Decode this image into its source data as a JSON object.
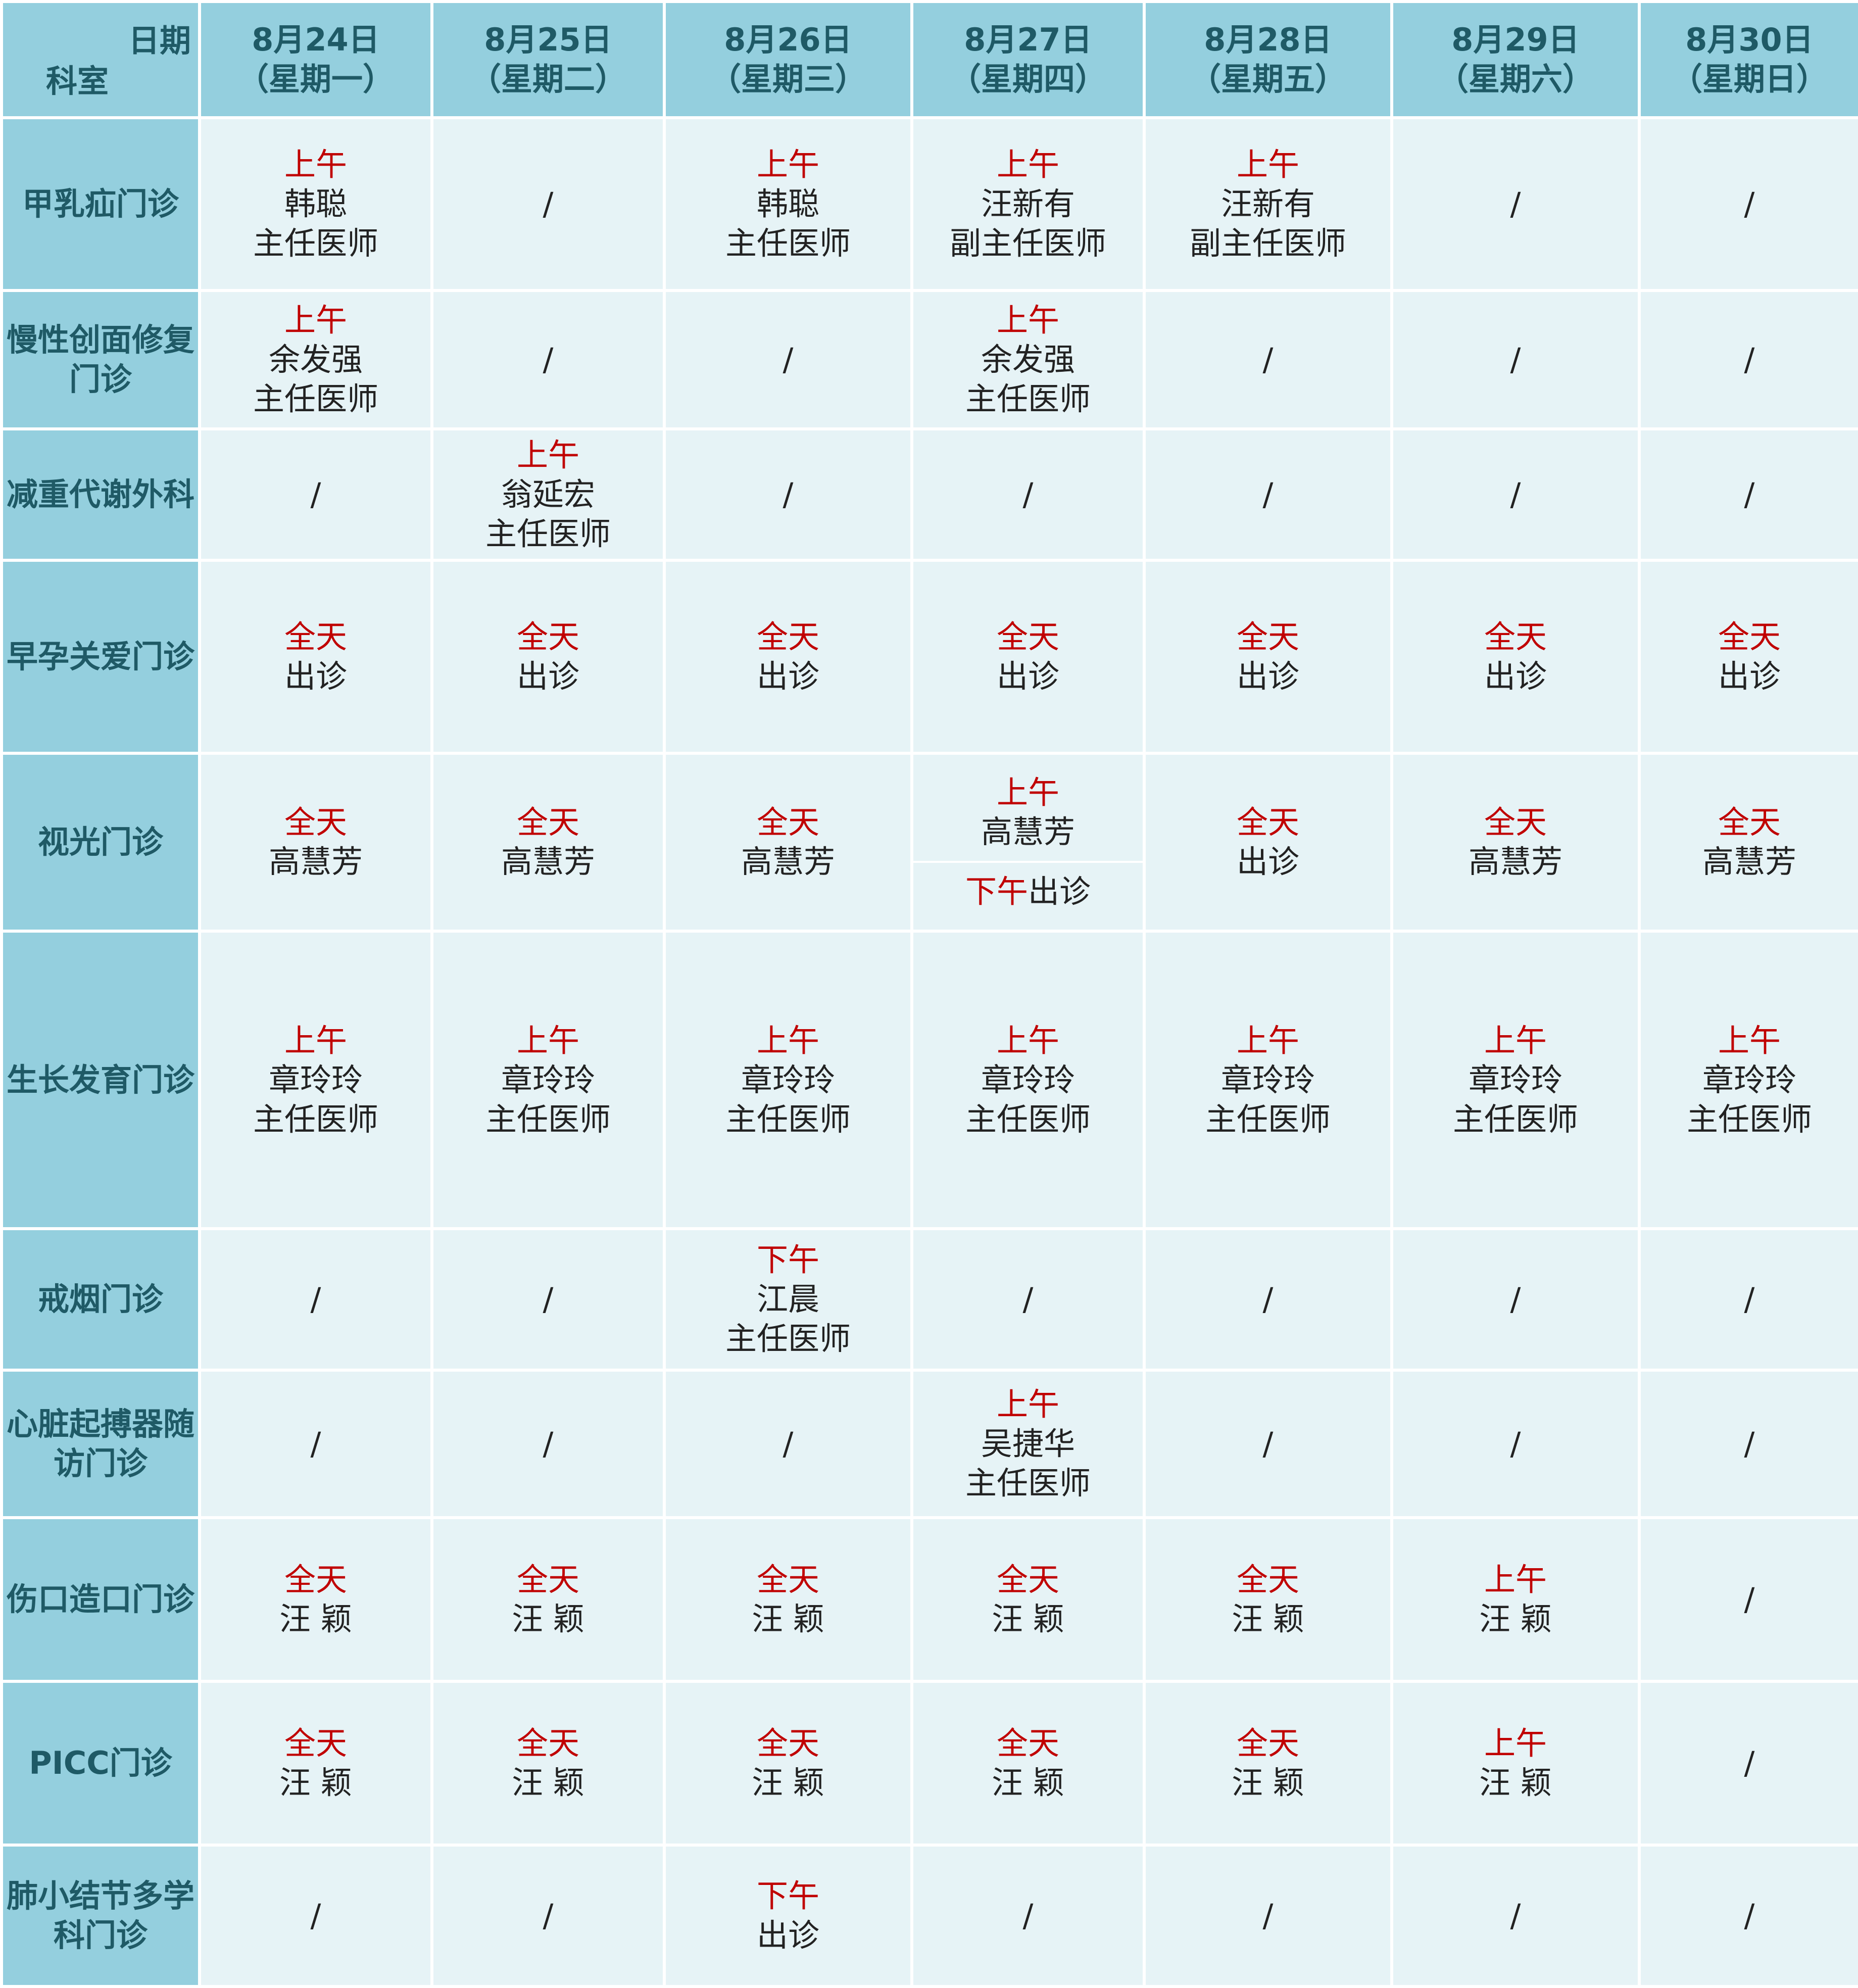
{
  "header": {
    "corner_top": "日期",
    "corner_bottom": "科室",
    "days": [
      {
        "date": "8月24日",
        "weekday": "（星期一）"
      },
      {
        "date": "8月25日",
        "weekday": "（星期二）"
      },
      {
        "date": "8月26日",
        "weekday": "（星期三）"
      },
      {
        "date": "8月27日",
        "weekday": "（星期四）"
      },
      {
        "date": "8月28日",
        "weekday": "（星期五）"
      },
      {
        "date": "8月29日",
        "weekday": "（星期六）"
      },
      {
        "date": "8月30日",
        "weekday": "（星期日）"
      }
    ]
  },
  "rows": [
    {
      "dept": "甲乳疝门诊",
      "cells": [
        {
          "period": "上午",
          "name": "韩聪",
          "title": "主任医师"
        },
        {
          "slash": "/"
        },
        {
          "period": "上午",
          "name": "韩聪",
          "title": "主任医师"
        },
        {
          "period": "上午",
          "name": "汪新有",
          "title": "副主任医师"
        },
        {
          "period": "上午",
          "name": "汪新有",
          "title": "副主任医师"
        },
        {
          "slash": "/"
        },
        {
          "slash": "/"
        }
      ]
    },
    {
      "dept": "慢性创面修复门诊",
      "cells": [
        {
          "period": "上午",
          "name": "余发强",
          "title": "主任医师"
        },
        {
          "slash": "/"
        },
        {
          "slash": "/"
        },
        {
          "period": "上午",
          "name": "余发强",
          "title": "主任医师"
        },
        {
          "slash": "/"
        },
        {
          "slash": "/"
        },
        {
          "slash": "/"
        }
      ]
    },
    {
      "dept": "减重代谢外科",
      "cells": [
        {
          "slash": "/"
        },
        {
          "period": "上午",
          "name": "翁延宏",
          "title": "主任医师"
        },
        {
          "slash": "/"
        },
        {
          "slash": "/"
        },
        {
          "slash": "/"
        },
        {
          "slash": "/"
        },
        {
          "slash": "/"
        }
      ]
    },
    {
      "dept": "早孕关爱门诊",
      "cells": [
        {
          "period": "全天",
          "name": "出诊"
        },
        {
          "period": "全天",
          "name": "出诊"
        },
        {
          "period": "全天",
          "name": "出诊"
        },
        {
          "period": "全天",
          "name": "出诊"
        },
        {
          "period": "全天",
          "name": "出诊"
        },
        {
          "period": "全天",
          "name": "出诊"
        },
        {
          "period": "全天",
          "name": "出诊"
        }
      ]
    },
    {
      "dept": "视光门诊",
      "cells": [
        {
          "period": "全天",
          "name": "高慧芳"
        },
        {
          "period": "全天",
          "name": "高慧芳"
        },
        {
          "period": "全天",
          "name": "高慧芳"
        },
        {
          "period": "上午",
          "name": "高慧芳",
          "period2": "下午",
          "name2": "出诊"
        },
        {
          "period": "全天",
          "name": "出诊"
        },
        {
          "period": "全天",
          "name": "高慧芳"
        },
        {
          "period": "全天",
          "name": "高慧芳"
        }
      ]
    },
    {
      "dept": "生长发育门诊",
      "cells": [
        {
          "period": "上午",
          "name": "章玲玲",
          "title": "主任医师"
        },
        {
          "period": "上午",
          "name": "章玲玲",
          "title": "主任医师"
        },
        {
          "period": "上午",
          "name": "章玲玲",
          "title": "主任医师"
        },
        {
          "period": "上午",
          "name": "章玲玲",
          "title": "主任医师"
        },
        {
          "period": "上午",
          "name": "章玲玲",
          "title": "主任医师"
        },
        {
          "period": "上午",
          "name": "章玲玲",
          "title": "主任医师"
        },
        {
          "period": "上午",
          "name": "章玲玲",
          "title": "主任医师"
        }
      ]
    },
    {
      "dept": "戒烟门诊",
      "cells": [
        {
          "slash": "/"
        },
        {
          "slash": "/"
        },
        {
          "period": "下午",
          "name": "江晨",
          "title": "主任医师"
        },
        {
          "slash": "/"
        },
        {
          "slash": "/"
        },
        {
          "slash": "/"
        },
        {
          "slash": "/"
        }
      ]
    },
    {
      "dept": "心脏起搏器随访门诊",
      "cells": [
        {
          "slash": "/"
        },
        {
          "slash": "/"
        },
        {
          "slash": "/"
        },
        {
          "period": "上午",
          "name": "吴捷华",
          "title": "主任医师"
        },
        {
          "slash": "/"
        },
        {
          "slash": "/"
        },
        {
          "slash": "/"
        }
      ]
    },
    {
      "dept": "伤口造口门诊",
      "cells": [
        {
          "period": "全天",
          "name": "汪 颖"
        },
        {
          "period": "全天",
          "name": "汪 颖"
        },
        {
          "period": "全天",
          "name": "汪 颖"
        },
        {
          "period": "全天",
          "name": "汪 颖"
        },
        {
          "period": "全天",
          "name": "汪 颖"
        },
        {
          "period": "上午",
          "name": "汪 颖"
        },
        {
          "slash": "/"
        }
      ]
    },
    {
      "dept": "PICC门诊",
      "cells": [
        {
          "period": "全天",
          "name": "汪 颖"
        },
        {
          "period": "全天",
          "name": "汪 颖"
        },
        {
          "period": "全天",
          "name": "汪 颖"
        },
        {
          "period": "全天",
          "name": "汪 颖"
        },
        {
          "period": "全天",
          "name": "汪 颖"
        },
        {
          "period": "上午",
          "name": "汪 颖"
        },
        {
          "slash": "/"
        }
      ]
    },
    {
      "dept": "肺小结节多学科门诊",
      "cells": [
        {
          "slash": "/"
        },
        {
          "slash": "/"
        },
        {
          "period": "下午",
          "name": "出诊"
        },
        {
          "slash": "/"
        },
        {
          "slash": "/"
        },
        {
          "slash": "/"
        },
        {
          "slash": "/"
        }
      ]
    }
  ]
}
